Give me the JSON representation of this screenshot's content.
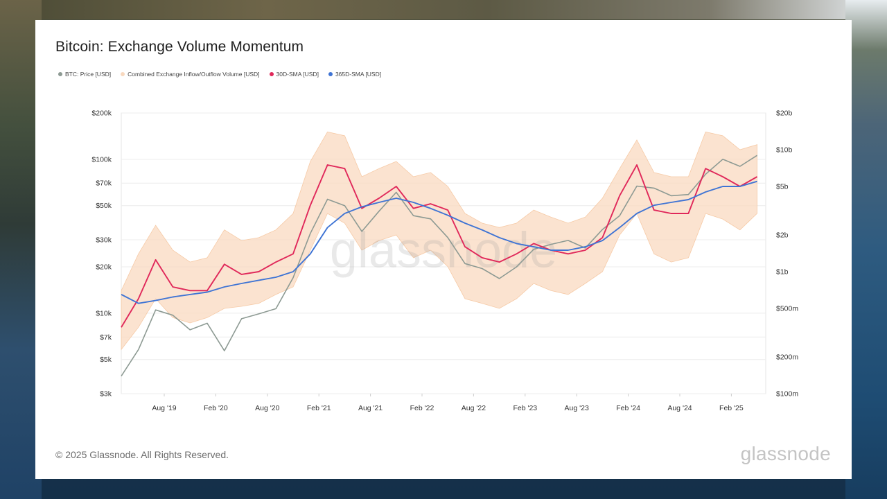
{
  "title": "Bitcoin: Exchange Volume Momentum",
  "legend": [
    {
      "label": "BTC: Price [USD]",
      "color": "#8d9a93"
    },
    {
      "label": "Combined Exchange Inflow/Outflow Volume [USD]",
      "color": "#f8d8be"
    },
    {
      "label": "30D-SMA [USD]",
      "color": "#e0285a"
    },
    {
      "label": "365D-SMA [USD]",
      "color": "#3f74d4"
    }
  ],
  "footer": "© 2025 Glassnode. All Rights Reserved.",
  "brand": "glassnode",
  "watermark": "glassnode",
  "chart_data": {
    "type": "line",
    "title": "Bitcoin: Exchange Volume Momentum",
    "x_tick_labels": [
      "Aug '19",
      "Feb '20",
      "Aug '20",
      "Feb '21",
      "Aug '21",
      "Feb '22",
      "Aug '22",
      "Feb '23",
      "Aug '23",
      "Feb '24",
      "Aug '24",
      "Feb '25"
    ],
    "y_left": {
      "scale": "log",
      "range": [
        3000,
        200000
      ],
      "tick_labels": [
        "$3k",
        "$5k",
        "$7k",
        "$10k",
        "$20k",
        "$30k",
        "$50k",
        "$70k",
        "$100k",
        "$200k"
      ],
      "tick_values": [
        3000,
        5000,
        7000,
        10000,
        20000,
        30000,
        50000,
        70000,
        100000,
        200000
      ]
    },
    "y_right": {
      "scale": "log",
      "range": [
        100000000,
        20000000000
      ],
      "tick_labels": [
        "$100m",
        "$200m",
        "$500m",
        "$1b",
        "$2b",
        "$5b",
        "$10b",
        "$20b"
      ],
      "tick_values": [
        100000000,
        200000000,
        500000000,
        1000000000,
        2000000000,
        5000000000,
        10000000000,
        20000000000
      ]
    },
    "grid": true,
    "x_dates": [
      "2019-03",
      "2019-05",
      "2019-07",
      "2019-09",
      "2019-11",
      "2020-01",
      "2020-03",
      "2020-05",
      "2020-07",
      "2020-09",
      "2020-11",
      "2021-01",
      "2021-03",
      "2021-05",
      "2021-07",
      "2021-09",
      "2021-11",
      "2022-01",
      "2022-03",
      "2022-05",
      "2022-07",
      "2022-09",
      "2022-11",
      "2023-01",
      "2023-03",
      "2023-05",
      "2023-07",
      "2023-09",
      "2023-11",
      "2024-01",
      "2024-03",
      "2024-05",
      "2024-07",
      "2024-09",
      "2024-11",
      "2025-01",
      "2025-03",
      "2025-05"
    ],
    "series": [
      {
        "name": "BTC: Price [USD]",
        "axis": "left",
        "values": [
          3900,
          5800,
          10500,
          9700,
          7800,
          8600,
          5700,
          9200,
          9900,
          10700,
          17000,
          33000,
          55000,
          50000,
          34000,
          46000,
          61000,
          43000,
          41000,
          31000,
          21000,
          19500,
          16800,
          20000,
          26000,
          28000,
          29700,
          26500,
          35000,
          43000,
          67000,
          65000,
          58000,
          59000,
          80000,
          100000,
          90000,
          106000
        ]
      },
      {
        "name": "30D-SMA [USD]",
        "axis": "right",
        "values": [
          350000000,
          600000000,
          1250000000,
          750000000,
          700000000,
          700000000,
          1150000000,
          950000000,
          1000000000,
          1200000000,
          1400000000,
          3500000000,
          7500000000,
          7000000000,
          3300000000,
          4000000000,
          5000000000,
          3300000000,
          3600000000,
          3200000000,
          1600000000,
          1300000000,
          1200000000,
          1400000000,
          1700000000,
          1500000000,
          1400000000,
          1500000000,
          1900000000,
          4200000000,
          7500000000,
          3200000000,
          3000000000,
          3000000000,
          7000000000,
          6000000000,
          5000000000,
          6000000000
        ]
      },
      {
        "name": "365D-SMA [USD]",
        "axis": "right",
        "values": [
          650000000,
          550000000,
          580000000,
          620000000,
          650000000,
          680000000,
          750000000,
          800000000,
          850000000,
          900000000,
          1000000000,
          1400000000,
          2300000000,
          3000000000,
          3400000000,
          3700000000,
          4000000000,
          3700000000,
          3300000000,
          2900000000,
          2500000000,
          2200000000,
          1900000000,
          1700000000,
          1600000000,
          1500000000,
          1500000000,
          1600000000,
          1800000000,
          2300000000,
          3000000000,
          3500000000,
          3700000000,
          3900000000,
          4500000000,
          5000000000,
          5000000000,
          5500000000
        ]
      }
    ],
    "volume_band": {
      "name": "Combined Exchange Inflow/Outflow Volume [USD]",
      "axis": "right",
      "upper": [
        700000000,
        1400000000,
        2400000000,
        1500000000,
        1200000000,
        1300000000,
        2200000000,
        1800000000,
        1900000000,
        2200000000,
        3000000000,
        8000000000,
        14000000000,
        13000000000,
        6000000000,
        7000000000,
        8000000000,
        6000000000,
        6500000000,
        5000000000,
        3000000000,
        2500000000,
        2300000000,
        2500000000,
        3200000000,
        2800000000,
        2500000000,
        2800000000,
        4000000000,
        7000000000,
        12000000000,
        6500000000,
        6000000000,
        6000000000,
        14000000000,
        13000000000,
        10000000000,
        11000000000
      ],
      "lower": [
        230000000,
        350000000,
        600000000,
        420000000,
        380000000,
        420000000,
        500000000,
        520000000,
        550000000,
        650000000,
        750000000,
        1500000000,
        3000000000,
        2500000000,
        1500000000,
        1800000000,
        2000000000,
        1300000000,
        1500000000,
        1100000000,
        600000000,
        550000000,
        500000000,
        600000000,
        800000000,
        700000000,
        650000000,
        800000000,
        1000000000,
        2000000000,
        3000000000,
        1400000000,
        1200000000,
        1300000000,
        3000000000,
        2700000000,
        2200000000,
        3000000000
      ]
    }
  }
}
